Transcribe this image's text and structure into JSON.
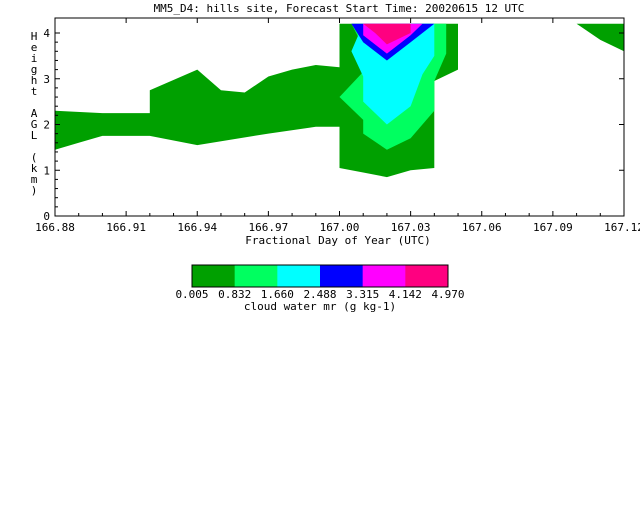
{
  "chart_data": {
    "type": "contour",
    "title": "MM5_D4: hills site,  Forecast Start Time: 20020615 12 UTC",
    "xlabel": "Fractional Day of Year (UTC)",
    "ylabel": "Height AGL (km)",
    "xlim": [
      166.88,
      167.12
    ],
    "ylim": [
      0,
      4.2
    ],
    "xticks": [
      "166.88",
      "166.91",
      "166.94",
      "166.97",
      "167.00",
      "167.03",
      "167.06",
      "167.09",
      "167.12"
    ],
    "xtick_values": [
      166.88,
      166.91,
      166.94,
      166.97,
      167.0,
      167.03,
      167.06,
      167.09,
      167.12
    ],
    "yticks": [
      "0",
      "1",
      "2",
      "3",
      "4"
    ],
    "ytick_values": [
      0,
      1,
      2,
      3,
      4
    ],
    "grid": false,
    "colorbar": {
      "label": "cloud water mr (g kg-1)",
      "levels": [
        "0.005",
        "0.832",
        "1.660",
        "2.488",
        "3.315",
        "4.142",
        "4.970"
      ],
      "colors": [
        "#00a000",
        "#00ff60",
        "#00ffff",
        "#0000ff",
        "#ff00ff",
        "#ff0080"
      ]
    },
    "regions": [
      {
        "name": "low-layer-cloud",
        "level": 0,
        "points": [
          [
            166.88,
            1.45
          ],
          [
            166.89,
            1.6
          ],
          [
            166.9,
            1.75
          ],
          [
            166.92,
            1.75
          ],
          [
            166.94,
            1.55
          ],
          [
            166.97,
            1.8
          ],
          [
            166.99,
            1.95
          ],
          [
            167.0,
            1.95
          ],
          [
            167.0,
            3.25
          ],
          [
            166.99,
            3.3
          ],
          [
            166.98,
            3.2
          ],
          [
            166.97,
            3.05
          ],
          [
            166.96,
            2.7
          ],
          [
            166.95,
            2.75
          ],
          [
            166.94,
            3.2
          ],
          [
            166.92,
            2.75
          ],
          [
            166.92,
            2.25
          ],
          [
            166.9,
            2.25
          ],
          [
            166.88,
            2.3
          ]
        ]
      },
      {
        "name": "main-cloud",
        "level": 0,
        "points": [
          [
            167.0,
            1.05
          ],
          [
            167.01,
            0.95
          ],
          [
            167.02,
            0.85
          ],
          [
            167.03,
            1.0
          ],
          [
            167.04,
            1.05
          ],
          [
            167.04,
            2.95
          ],
          [
            167.05,
            3.2
          ],
          [
            167.05,
            4.2
          ],
          [
            167.0,
            4.2
          ]
        ]
      },
      {
        "name": "main-cloud-level-2",
        "level": 1,
        "points": [
          [
            167.02,
            1.45
          ],
          [
            167.03,
            1.7
          ],
          [
            167.04,
            2.3
          ],
          [
            167.04,
            2.95
          ],
          [
            167.045,
            3.55
          ],
          [
            167.045,
            4.2
          ],
          [
            167.005,
            4.2
          ],
          [
            167.01,
            3.7
          ],
          [
            167.01,
            3.15
          ],
          [
            167.0,
            2.6
          ],
          [
            167.01,
            2.1
          ],
          [
            167.01,
            1.8
          ]
        ]
      },
      {
        "name": "main-cloud-level-3",
        "level": 2,
        "points": [
          [
            167.02,
            2.0
          ],
          [
            167.03,
            2.4
          ],
          [
            167.035,
            3.1
          ],
          [
            167.04,
            3.5
          ],
          [
            167.04,
            4.2
          ],
          [
            167.01,
            4.2
          ],
          [
            167.005,
            3.6
          ],
          [
            167.01,
            3.05
          ],
          [
            167.01,
            2.5
          ]
        ]
      },
      {
        "name": "main-cloud-level-4",
        "level": 3,
        "points": [
          [
            167.02,
            3.4
          ],
          [
            167.03,
            3.8
          ],
          [
            167.04,
            4.2
          ],
          [
            167.005,
            4.2
          ],
          [
            167.01,
            3.8
          ]
        ]
      },
      {
        "name": "main-cloud-level-5",
        "level": 4,
        "points": [
          [
            167.02,
            3.55
          ],
          [
            167.03,
            3.95
          ],
          [
            167.035,
            4.2
          ],
          [
            167.01,
            4.2
          ],
          [
            167.01,
            3.95
          ]
        ]
      },
      {
        "name": "main-cloud-level-6",
        "level": 5,
        "points": [
          [
            167.02,
            3.75
          ],
          [
            167.03,
            4.0
          ],
          [
            167.03,
            4.2
          ],
          [
            167.01,
            4.2
          ],
          [
            167.015,
            4.0
          ]
        ]
      },
      {
        "name": "corner-cloud",
        "level": 0,
        "points": [
          [
            167.1,
            4.2
          ],
          [
            167.12,
            4.2
          ],
          [
            167.12,
            3.6
          ],
          [
            167.11,
            3.85
          ]
        ]
      }
    ]
  }
}
